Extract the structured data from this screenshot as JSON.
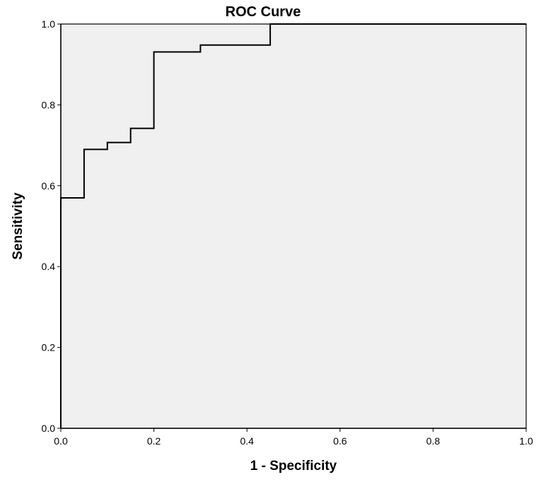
{
  "chart_data": {
    "type": "line",
    "title": "ROC Curve",
    "xlabel": "1 - Specificity",
    "ylabel": "Sensitivity",
    "xlim": [
      0.0,
      1.0
    ],
    "ylim": [
      0.0,
      1.0
    ],
    "x_ticks": [
      "0.0",
      "0.2",
      "0.4",
      "0.6",
      "0.8",
      "1.0"
    ],
    "y_ticks": [
      "0.0",
      "0.2",
      "0.4",
      "0.6",
      "0.8",
      "1.0"
    ],
    "grid": false,
    "legend": "none",
    "series": [
      {
        "points": [
          [
            0.0,
            0.0
          ],
          [
            0.0,
            0.57
          ],
          [
            0.05,
            0.57
          ],
          [
            0.05,
            0.69
          ],
          [
            0.1,
            0.69
          ],
          [
            0.1,
            0.707
          ],
          [
            0.15,
            0.707
          ],
          [
            0.15,
            0.742
          ],
          [
            0.2,
            0.742
          ],
          [
            0.2,
            0.931
          ],
          [
            0.3,
            0.931
          ],
          [
            0.3,
            0.948
          ],
          [
            0.45,
            0.948
          ],
          [
            0.45,
            1.0
          ],
          [
            1.0,
            1.0
          ]
        ]
      }
    ],
    "colors": {
      "plot_background": "#f0f0f0",
      "line": "#000000",
      "axis": "#000000"
    }
  }
}
